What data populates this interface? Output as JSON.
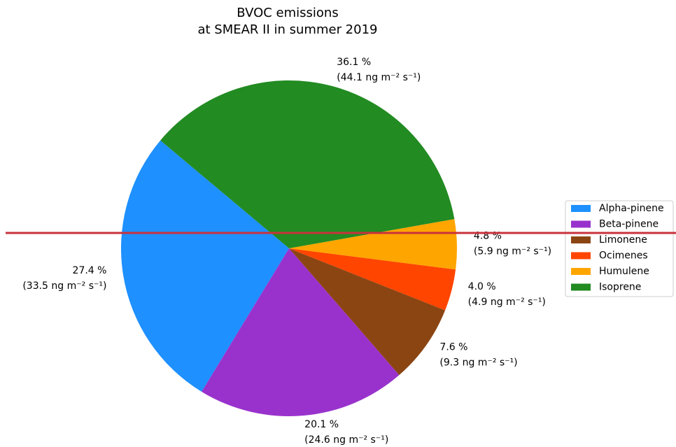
{
  "chart_data": {
    "type": "pie",
    "title": "BVOC emissions",
    "subtitle": "at SMEAR II in summer 2019",
    "categories": [
      "Alpha-pinene",
      "Beta-pinene",
      "Limonene",
      "Ocimenes",
      "Humulene",
      "Isoprene"
    ],
    "values": [
      27.4,
      20.1,
      7.6,
      4.0,
      4.8,
      36.1
    ],
    "value_labels": [
      "27.4 %",
      "20.1 %",
      "7.6 %",
      "4.0 %",
      "4.8 %",
      "36.1 %"
    ],
    "amount_labels": [
      "(33.5 ng m⁻² s⁻¹)",
      "(24.6 ng m⁻² s⁻¹)",
      "(9.3 ng m⁻² s⁻¹)",
      "(4.9 ng m⁻² s⁻¹)",
      "(5.9 ng m⁻² s⁻¹)",
      "(44.1 ng m⁻² s⁻¹)"
    ],
    "colors": [
      "#1e90ff",
      "#9932cc",
      "#8b4513",
      "#ff4500",
      "#ffa500",
      "#228b22"
    ],
    "legend": "right"
  }
}
